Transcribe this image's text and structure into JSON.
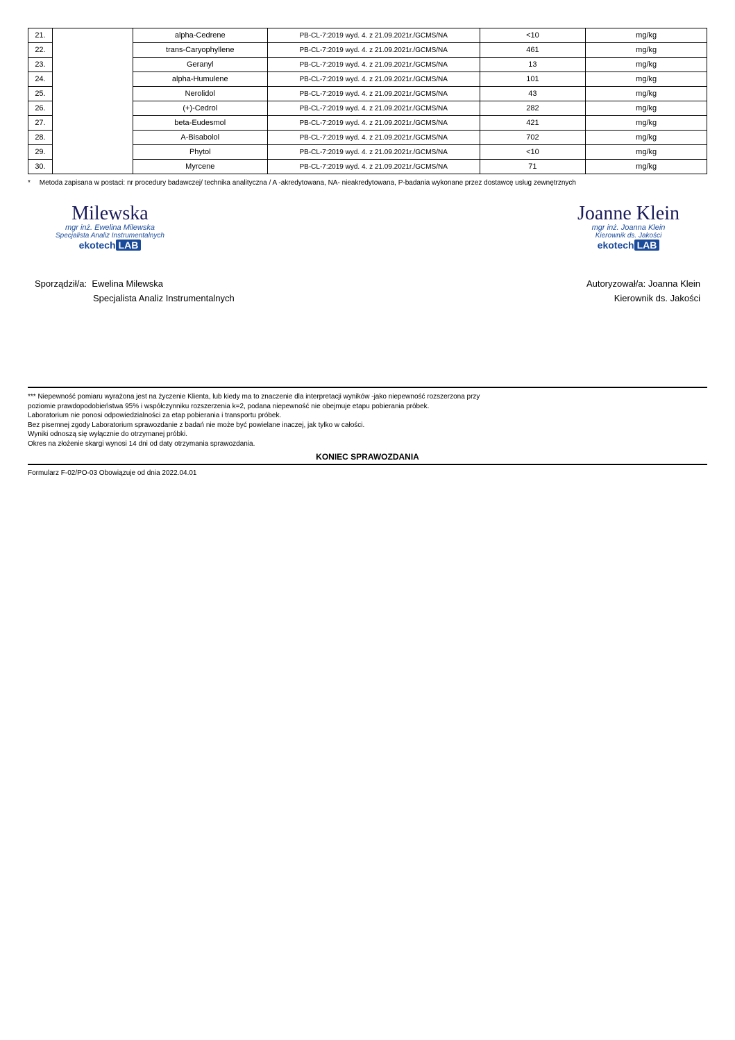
{
  "table": {
    "rows": [
      {
        "num": "21.",
        "name": "alpha-Cedrene",
        "method": "PB-CL-7:2019 wyd. 4. z 21.09.2021r./GCMS/NA",
        "value": "<10",
        "unit": "mg/kg"
      },
      {
        "num": "22.",
        "name": "trans-Caryophyllene",
        "method": "PB-CL-7:2019 wyd. 4. z 21.09.2021r./GCMS/NA",
        "value": "461",
        "unit": "mg/kg"
      },
      {
        "num": "23.",
        "name": "Geranyl",
        "method": "PB-CL-7:2019 wyd. 4. z 21.09.2021r./GCMS/NA",
        "value": "13",
        "unit": "mg/kg"
      },
      {
        "num": "24.",
        "name": "alpha-Humulene",
        "method": "PB-CL-7:2019 wyd. 4. z 21.09.2021r./GCMS/NA",
        "value": "101",
        "unit": "mg/kg"
      },
      {
        "num": "25.",
        "name": "Nerolidol",
        "method": "PB-CL-7:2019 wyd. 4. z 21.09.2021r./GCMS/NA",
        "value": "43",
        "unit": "mg/kg"
      },
      {
        "num": "26.",
        "name": "(+)-Cedrol",
        "method": "PB-CL-7:2019 wyd. 4. z 21.09.2021r./GCMS/NA",
        "value": "282",
        "unit": "mg/kg"
      },
      {
        "num": "27.",
        "name": "beta-Eudesmol",
        "method": "PB-CL-7:2019 wyd. 4. z 21.09.2021r./GCMS/NA",
        "value": "421",
        "unit": "mg/kg"
      },
      {
        "num": "28.",
        "name": "A-Bisabolol",
        "method": "PB-CL-7:2019 wyd. 4. z 21.09.2021r./GCMS/NA",
        "value": "702",
        "unit": "mg/kg"
      },
      {
        "num": "29.",
        "name": "Phytol",
        "method": "PB-CL-7:2019 wyd. 4. z 21.09.2021r./GCMS/NA",
        "value": "<10",
        "unit": "mg/kg"
      },
      {
        "num": "30.",
        "name": "Myrcene",
        "method": "PB-CL-7:2019 wyd. 4. z 21.09.2021r./GCMS/NA",
        "value": "71",
        "unit": "mg/kg"
      }
    ]
  },
  "footnote": {
    "marker": "*",
    "text": "Metoda zapisana w postaci: nr procedury badawczej/ technika analityczna / A -akredytowana, NA- nieakredytowana, P-badania wykonane przez dostawcę usług zewnętrznych"
  },
  "sig_left": {
    "script": "Milewska",
    "line1": "mgr inż. Ewelina Milewska",
    "line2": "Specjalista Analiz Instrumentalnych",
    "brand_a": "ekotech",
    "brand_b": "LAB"
  },
  "sig_right": {
    "script": "Joanne Klein",
    "line1": "mgr inż. Joanna Klein",
    "line2": "Kierownik ds. Jakości",
    "brand_a": "ekotech",
    "brand_b": "LAB"
  },
  "names_left": {
    "label": "Sporządził/a:",
    "name": "Ewelina Milewska",
    "title": "Specjalista Analiz Instrumentalnych"
  },
  "names_right": {
    "label": "Autoryzował/a:",
    "name": "Joanna Klein",
    "title": "Kierownik ds. Jakości"
  },
  "notes": {
    "l1": "*** Niepewność pomiaru wyrażona jest na życzenie Klienta,  lub kiedy ma to znaczenie dla interpretacji wyników -jako niepewność rozszerzona przy",
    "l2": "poziomie prawdopodobieństwa 95% i współczynniku rozszerzenia k=2, podana niepewność nie obejmuje etapu pobierania próbek.",
    "l3": "Laboratorium nie ponosi odpowiedzialności za etap pobierania i transportu próbek.",
    "l4": "Bez pisemnej zgody Laboratorium sprawozdanie z badań nie może być powielane inaczej, jak tylko w całości.",
    "l5": "Wyniki odnoszą się wyłącznie do otrzymanej próbki.",
    "l6": "Okres na złożenie skargi wynosi 14 dni od daty otrzymania sprawozdania."
  },
  "koniec": "KONIEC SPRAWOZDANIA",
  "form_line": "Formularz F-02/PO-03 Obowiązuje od dnia 2022.04.01"
}
